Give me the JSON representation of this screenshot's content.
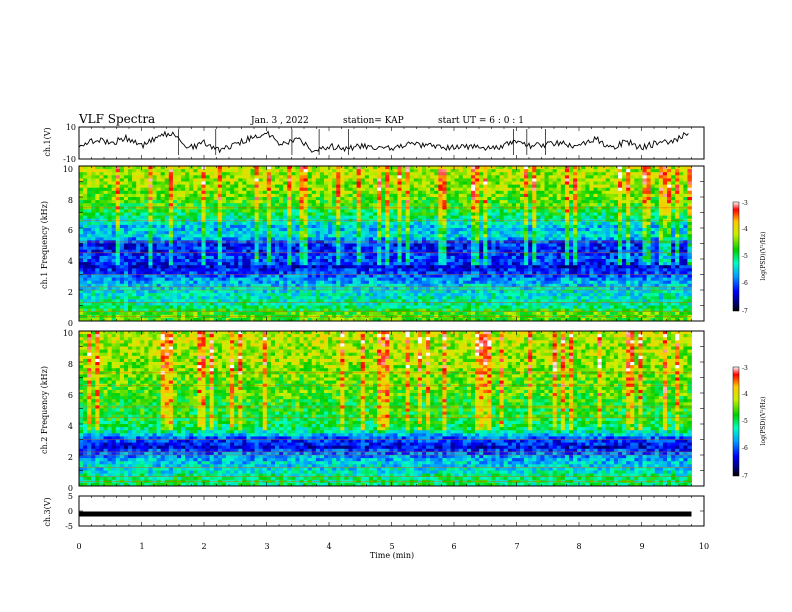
{
  "header": {
    "title": "VLF Spectra",
    "date": "Jan. 3 , 2022",
    "station": "station= KAP",
    "start_ut": "start UT =  6 : 0 : 1"
  },
  "chart_data": [
    {
      "type": "line",
      "panel": "ch1_waveform",
      "ylabel": "ch.1(V)",
      "ylim": [
        -10,
        10
      ],
      "yticks": [
        "10",
        "-10"
      ],
      "xlim": [
        0,
        10
      ],
      "x": [
        0,
        0.25,
        0.5,
        0.75,
        1,
        1.25,
        1.5,
        1.75,
        2,
        2.25,
        2.5,
        2.75,
        3,
        3.25,
        3.5,
        3.75,
        4,
        4.25,
        4.5,
        4.75,
        5,
        5.25,
        5.5,
        5.75,
        6,
        6.25,
        6.5,
        6.75,
        7,
        7.25,
        7.5,
        7.75,
        8,
        8.25,
        8.5,
        8.75,
        9,
        9.25,
        9.5,
        9.75
      ],
      "y": [
        -3,
        2,
        0,
        3,
        -2,
        4,
        6,
        -3,
        0,
        -5,
        -1,
        3,
        6,
        -1,
        4,
        -5,
        -2,
        -3,
        -2,
        -3,
        -3,
        -1,
        -1,
        -2,
        -3,
        -2,
        -4,
        -2,
        1,
        -2,
        -1,
        0,
        -2,
        3,
        -3,
        1,
        -3,
        0,
        1,
        6
      ],
      "color": "#000000"
    },
    {
      "type": "heatmap",
      "panel": "ch1_spectrogram",
      "ylabel": "ch.1 Frequency (kHz)",
      "ylim": [
        0,
        10
      ],
      "yticks": [
        "0",
        "2",
        "4",
        "6",
        "8",
        "10"
      ],
      "xlim": [
        0,
        9.8
      ],
      "frequency_kHz": [
        0.5,
        1,
        1.5,
        2,
        2.5,
        3,
        3.5,
        4,
        4.5,
        5,
        5.5,
        6,
        6.5,
        7,
        7.5,
        8,
        8.5,
        9,
        9.5,
        10
      ],
      "log_psd": [
        -4.6,
        -5.2,
        -5.3,
        -5.4,
        -5.6,
        -6.0,
        -6.3,
        -6.0,
        -6.2,
        -6.2,
        -5.4,
        -5.6,
        -5.2,
        -4.9,
        -4.7,
        -4.5,
        -4.4,
        -4.3,
        -4.3,
        -4.2
      ],
      "colorbar": {
        "label": "log(PSD)(V²/Hz)",
        "range": [
          -7,
          -3
        ],
        "ticks": [
          "-3",
          "-4",
          "-5",
          "-6",
          "-7"
        ]
      }
    },
    {
      "type": "heatmap",
      "panel": "ch2_spectrogram",
      "ylabel": "ch.2 Frequency (kHz)",
      "ylim": [
        0,
        10
      ],
      "yticks": [
        "0",
        "2",
        "4",
        "6",
        "8",
        "10"
      ],
      "xlim": [
        0,
        9.8
      ],
      "frequency_kHz": [
        0.5,
        1,
        1.5,
        2,
        2.5,
        3,
        3.5,
        4,
        4.5,
        5,
        5.5,
        6,
        6.5,
        7,
        7.5,
        8,
        8.5,
        9,
        9.5,
        10
      ],
      "log_psd": [
        -5.0,
        -5.4,
        -5.5,
        -5.8,
        -6.3,
        -6.1,
        -5.2,
        -4.9,
        -4.8,
        -4.8,
        -4.7,
        -4.6,
        -4.6,
        -4.5,
        -4.4,
        -4.3,
        -4.3,
        -4.3,
        -4.2,
        -4.2
      ],
      "colorbar": {
        "label": "log(PSD)(V²/Hz)",
        "range": [
          -7,
          -3
        ],
        "ticks": [
          "-3",
          "-4",
          "-5",
          "-6",
          "-7"
        ]
      }
    },
    {
      "type": "line",
      "panel": "ch3_waveform",
      "ylabel": "ch.3(V)",
      "ylim": [
        -5,
        5
      ],
      "yticks": [
        "5",
        "0",
        "-5"
      ],
      "xlim": [
        0,
        10
      ],
      "x": [
        0,
        9.8
      ],
      "y": [
        -1,
        -1
      ],
      "color": "#000000"
    }
  ],
  "x_axis": {
    "label": "Time (min)",
    "ticks": [
      "0",
      "1",
      "2",
      "3",
      "4",
      "5",
      "6",
      "7",
      "8",
      "9",
      "10"
    ]
  }
}
